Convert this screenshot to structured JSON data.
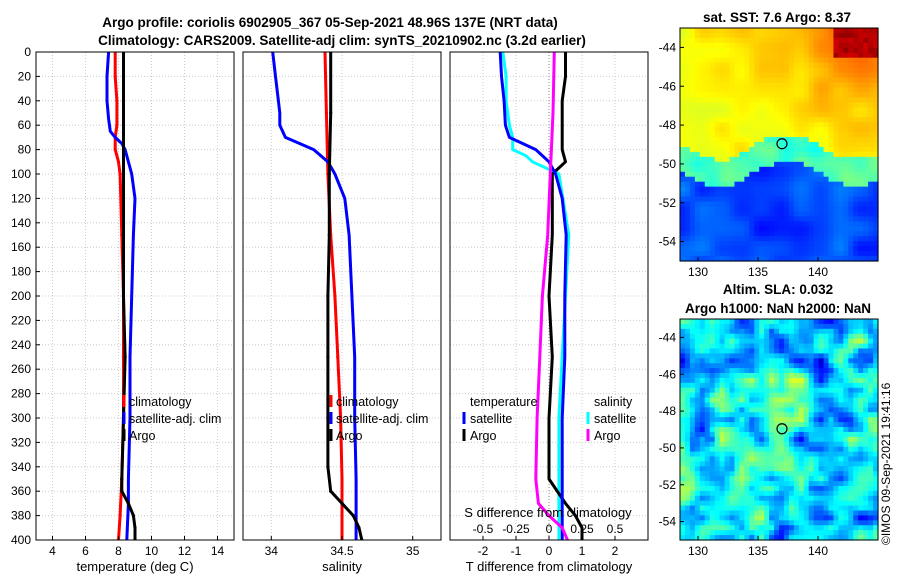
{
  "header": {
    "title_line1": "Argo profile: coriolis 6902905_367 05-Sep-2021 48.96S 137E (NRT data)",
    "title_line2": "Climatology: CARS2009. Satellite-adj clim: synTS_20210902.nc (3.2d earlier)"
  },
  "colors": {
    "climatology": "#ff0000",
    "satellite": "#0000ff",
    "argo": "#000000",
    "temp_satellite": "#00ffff",
    "sal_argo": "#ff00ff",
    "grid": "#cccccc"
  },
  "depth_ticks": [
    "0",
    "20",
    "40",
    "60",
    "80",
    "100",
    "120",
    "140",
    "160",
    "180",
    "200",
    "220",
    "240",
    "260",
    "280",
    "300",
    "320",
    "340",
    "360",
    "380",
    "400"
  ],
  "chart_data": [
    {
      "type": "line",
      "id": "temperature",
      "xlabel": "temperature (deg C)",
      "ylabel": "",
      "xlim": [
        3,
        15
      ],
      "ylim": [
        0,
        400
      ],
      "y_reversed": true,
      "xticks": [
        "4",
        "6",
        "8",
        "10",
        "12",
        "14"
      ],
      "xtick_values": [
        4,
        6,
        8,
        10,
        12,
        14
      ],
      "legend_position": "bottom-right",
      "legend": [
        "climatology",
        "satellite-adj. clim",
        "Argo"
      ],
      "series": [
        {
          "name": "climatology",
          "color": "#ff0000",
          "dotted": true,
          "depth": [
            0,
            20,
            40,
            60,
            70,
            80,
            90,
            100,
            150,
            200,
            250,
            300,
            350,
            380,
            400
          ],
          "values": [
            7.8,
            7.8,
            7.9,
            7.9,
            7.8,
            7.8,
            8.0,
            8.1,
            8.2,
            8.3,
            8.3,
            8.3,
            8.2,
            8.1,
            8.0
          ]
        },
        {
          "name": "satellite-adj. clim",
          "color": "#0000ff",
          "dotted": false,
          "depth": [
            0,
            20,
            40,
            55,
            65,
            70,
            75,
            80,
            100,
            120,
            150,
            200,
            250,
            300,
            350,
            370,
            400
          ],
          "values": [
            7.4,
            7.3,
            7.3,
            7.4,
            7.5,
            7.8,
            8.2,
            8.4,
            8.8,
            9.0,
            8.9,
            8.8,
            8.7,
            8.7,
            8.6,
            8.6,
            8.5
          ]
        },
        {
          "name": "Argo",
          "color": "#000000",
          "dotted": true,
          "depth": [
            0,
            20,
            40,
            60,
            80,
            100,
            150,
            200,
            250,
            300,
            350,
            360,
            370,
            380,
            390,
            400
          ],
          "values": [
            8.3,
            8.3,
            8.3,
            8.3,
            8.3,
            8.3,
            8.3,
            8.3,
            8.4,
            8.3,
            8.2,
            8.2,
            8.6,
            8.9,
            9.0,
            9.0
          ]
        }
      ]
    },
    {
      "type": "line",
      "id": "salinity",
      "xlabel": "salinity",
      "ylabel": "",
      "xlim": [
        33.8,
        35.2
      ],
      "ylim": [
        0,
        400
      ],
      "y_reversed": true,
      "xticks": [
        "34",
        "34.5",
        "35"
      ],
      "xtick_values": [
        34,
        34.5,
        35
      ],
      "legend_position": "bottom-right",
      "legend": [
        "climatology",
        "satellite-adj. clim",
        "Argo"
      ],
      "series": [
        {
          "name": "climatology",
          "color": "#ff0000",
          "dotted": true,
          "depth": [
            0,
            50,
            100,
            150,
            200,
            250,
            300,
            350,
            380,
            400
          ],
          "values": [
            34.38,
            34.39,
            34.4,
            34.42,
            34.45,
            34.47,
            34.49,
            34.5,
            34.5,
            34.5
          ]
        },
        {
          "name": "satellite-adj. clim",
          "color": "#0000ff",
          "dotted": false,
          "depth": [
            0,
            20,
            40,
            50,
            60,
            70,
            75,
            80,
            90,
            100,
            120,
            150,
            200,
            250,
            300,
            350,
            400
          ],
          "values": [
            34.01,
            34.03,
            34.05,
            34.06,
            34.06,
            34.1,
            34.2,
            34.3,
            34.4,
            34.45,
            34.52,
            34.55,
            34.57,
            34.59,
            34.59,
            34.6,
            34.6
          ]
        },
        {
          "name": "Argo",
          "color": "#000000",
          "dotted": true,
          "depth": [
            0,
            50,
            100,
            150,
            200,
            250,
            300,
            340,
            360,
            370,
            380,
            390,
            400
          ],
          "values": [
            34.42,
            34.42,
            34.41,
            34.41,
            34.4,
            34.4,
            34.4,
            34.4,
            34.42,
            34.5,
            34.58,
            34.62,
            34.64
          ]
        }
      ]
    },
    {
      "type": "line",
      "id": "difference",
      "xlabel": "T difference from climatology",
      "xlabel_top": "S difference from climatology",
      "xlim": [
        -3,
        3
      ],
      "xlim_top": [
        -0.75,
        0.75
      ],
      "ylim": [
        0,
        400
      ],
      "y_reversed": true,
      "xticks": [
        "-2",
        "-1",
        "0",
        "1",
        "2"
      ],
      "xtick_values": [
        -2,
        -1,
        0,
        1,
        2
      ],
      "xticks_top": [
        "-0.5",
        "-0.25",
        "0",
        "0.25",
        "0.5"
      ],
      "xtick_values_top": [
        -0.5,
        -0.25,
        0,
        0.25,
        0.5
      ],
      "legend_position": "bottom",
      "legend_groups": [
        "temperature",
        "salinity"
      ],
      "legend": [
        "satellite",
        "Argo",
        "satellite",
        "Argo"
      ],
      "series": [
        {
          "name": "temperature satellite",
          "color": "#00ffff",
          "axis": "T",
          "depth": [
            0,
            20,
            40,
            60,
            70,
            80,
            85,
            90,
            100,
            150,
            200,
            250,
            300,
            350,
            400
          ],
          "values": [
            -1.4,
            -1.3,
            -1.3,
            -1.2,
            -1.1,
            -1.1,
            -0.7,
            -0.5,
            0.3,
            0.6,
            0.5,
            0.4,
            0.3,
            0.3,
            0.3
          ]
        },
        {
          "name": "temperature Argo",
          "color": "#000000",
          "axis": "T",
          "depth": [
            0,
            20,
            40,
            60,
            80,
            90,
            100,
            150,
            200,
            250,
            300,
            350,
            370,
            380,
            390,
            400
          ],
          "values": [
            0.5,
            0.5,
            0.4,
            0.4,
            0.4,
            0.5,
            0.1,
            0.1,
            0.0,
            0.1,
            0.0,
            0.0,
            0.5,
            0.8,
            1.0,
            1.0
          ]
        },
        {
          "name": "salinity satellite",
          "color": "#0000ff",
          "axis": "S",
          "depth": [
            0,
            20,
            40,
            60,
            70,
            75,
            80,
            90,
            100,
            120,
            150,
            200,
            250,
            300,
            350,
            400
          ],
          "values": [
            -0.37,
            -0.36,
            -0.34,
            -0.33,
            -0.3,
            -0.2,
            -0.1,
            0.0,
            0.05,
            0.1,
            0.13,
            0.12,
            0.12,
            0.1,
            0.1,
            0.1
          ]
        },
        {
          "name": "salinity Argo",
          "color": "#ff00ff",
          "axis": "S",
          "depth": [
            0,
            50,
            100,
            150,
            200,
            250,
            300,
            350,
            370,
            380,
            390,
            400
          ],
          "values": [
            0.04,
            0.03,
            0.01,
            -0.01,
            -0.05,
            -0.07,
            -0.09,
            -0.1,
            -0.08,
            0.0,
            0.1,
            0.14
          ]
        }
      ]
    },
    {
      "type": "heatmap",
      "id": "sst_map",
      "title": "sat. SST: 7.6 Argo: 8.37",
      "xlim": [
        128.5,
        145
      ],
      "ylim": [
        -55,
        -43
      ],
      "xticks": [
        "130",
        "135",
        "140"
      ],
      "xtick_values": [
        130,
        135,
        140
      ],
      "yticks": [
        "-44",
        "-46",
        "-48",
        "-50",
        "-52",
        "-54"
      ],
      "ytick_values": [
        -44,
        -46,
        -48,
        -50,
        -52,
        -54
      ],
      "marker": {
        "lon": 137,
        "lat": -48.96
      }
    },
    {
      "type": "heatmap",
      "id": "sla_map",
      "title": "Altim. SLA: 0.032",
      "subtitle": "Argo h1000: NaN h2000: NaN",
      "xlim": [
        128.5,
        145
      ],
      "ylim": [
        -55,
        -43
      ],
      "xticks": [
        "130",
        "135",
        "140"
      ],
      "xtick_values": [
        130,
        135,
        140
      ],
      "yticks": [
        "-44",
        "-46",
        "-48",
        "-50",
        "-52",
        "-54"
      ],
      "ytick_values": [
        -44,
        -46,
        -48,
        -50,
        -52,
        -54
      ],
      "marker": {
        "lon": 137,
        "lat": -48.96
      }
    }
  ],
  "credit": "©IMOS 09-Sep-2021 19:41:16"
}
